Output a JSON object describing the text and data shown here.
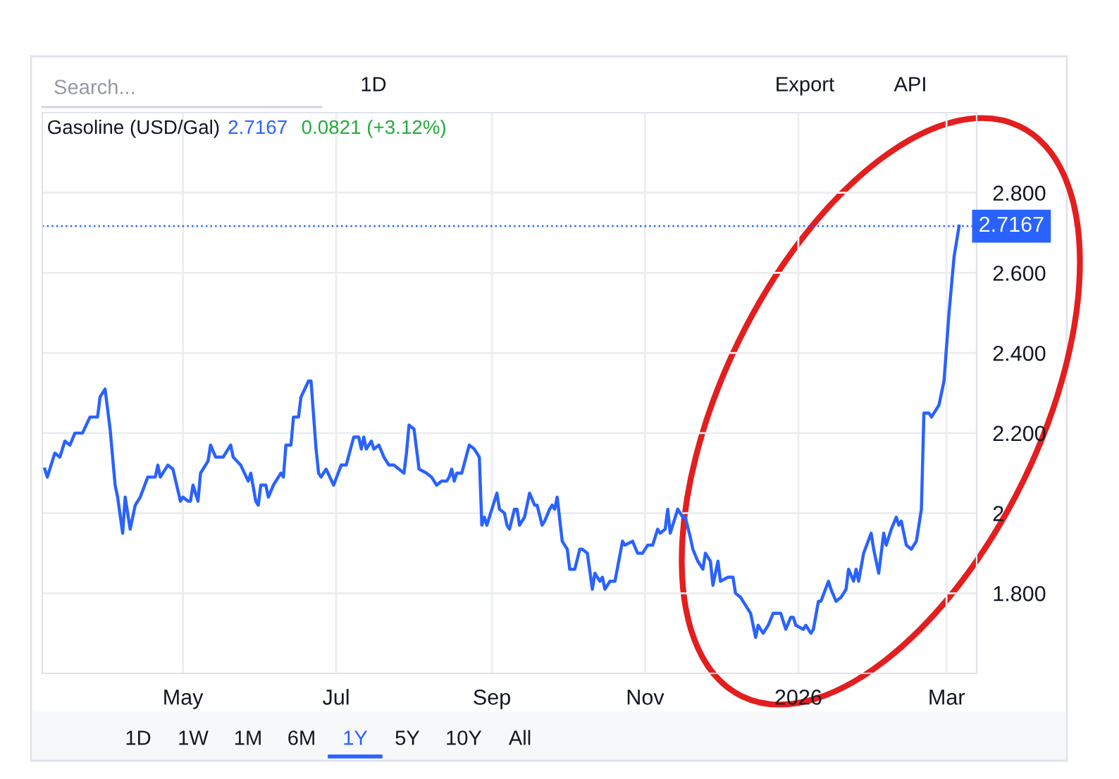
{
  "chart_data": {
    "type": "line",
    "title": "Gasoline (USD/Gal)",
    "annotations": [
      "2.7167",
      "0.0821 (+3.12%)",
      "Search...",
      "1D",
      "Export",
      "API",
      "1D",
      "1W",
      "1M",
      "6M",
      "1Y",
      "5Y",
      "10Y",
      "All"
    ],
    "x": [
      "2025-03-07",
      "2025-03-08",
      "2025-03-11",
      "2025-03-13",
      "2025-03-15",
      "2025-03-17",
      "2025-03-19",
      "2025-03-22",
      "2025-03-25",
      "2025-03-28",
      "2025-03-29",
      "2025-03-31",
      "2025-04-02",
      "2025-04-04",
      "2025-04-05",
      "2025-04-07",
      "2025-04-08",
      "2025-04-10",
      "2025-04-12",
      "2025-04-14",
      "2025-04-17",
      "2025-04-20",
      "2025-04-21",
      "2025-04-22",
      "2025-04-25",
      "2025-04-27",
      "2025-04-30",
      "2025-05-01",
      "2025-05-03",
      "2025-05-04",
      "2025-05-05",
      "2025-05-07",
      "2025-05-08",
      "2025-05-11",
      "2025-05-12",
      "2025-05-14",
      "2025-05-17",
      "2025-05-20",
      "2025-05-21",
      "2025-05-24",
      "2025-05-27",
      "2025-05-28",
      "2025-05-30",
      "2025-05-31",
      "2025-06-01",
      "2025-06-03",
      "2025-06-04",
      "2025-06-06",
      "2025-06-09",
      "2025-06-10",
      "2025-06-11",
      "2025-06-13",
      "2025-06-14",
      "2025-06-16",
      "2025-06-17",
      "2025-06-20",
      "2025-06-21",
      "2025-06-23",
      "2025-06-24",
      "2025-06-25",
      "2025-06-27",
      "2025-06-30",
      "2025-07-03",
      "2025-07-05",
      "2025-07-08",
      "2025-07-10",
      "2025-07-11",
      "2025-07-12",
      "2025-07-13",
      "2025-07-15",
      "2025-07-16",
      "2025-07-18",
      "2025-07-20",
      "2025-07-22",
      "2025-07-24",
      "2025-07-26",
      "2025-07-28",
      "2025-07-29",
      "2025-07-30",
      "2025-08-01",
      "2025-08-02",
      "2025-08-03",
      "2025-08-06",
      "2025-08-08",
      "2025-08-10",
      "2025-08-12",
      "2025-08-14",
      "2025-08-15",
      "2025-08-16",
      "2025-08-17",
      "2025-08-18",
      "2025-08-20",
      "2025-08-23",
      "2025-08-25",
      "2025-08-27",
      "2025-08-28",
      "2025-08-29",
      "2025-08-30",
      "2025-09-01",
      "2025-09-03",
      "2025-09-04",
      "2025-09-06",
      "2025-09-07",
      "2025-09-08",
      "2025-09-10",
      "2025-09-11",
      "2025-09-12",
      "2025-09-14",
      "2025-09-16",
      "2025-09-18",
      "2025-09-19",
      "2025-09-21",
      "2025-09-22",
      "2025-09-24",
      "2025-09-25",
      "2025-09-26",
      "2025-09-27",
      "2025-09-29",
      "2025-10-01",
      "2025-10-02",
      "2025-10-04",
      "2025-10-06",
      "2025-10-07",
      "2025-10-09",
      "2025-10-11",
      "2025-10-12",
      "2025-10-14",
      "2025-10-15",
      "2025-10-16",
      "2025-10-18",
      "2025-10-20",
      "2025-10-23",
      "2025-10-24",
      "2025-10-27",
      "2025-10-29",
      "2025-10-31",
      "2025-11-02",
      "2025-11-04",
      "2025-11-06",
      "2025-11-07",
      "2025-11-09",
      "2025-11-10",
      "2025-11-11",
      "2025-11-14",
      "2025-11-16",
      "2025-11-17",
      "2025-11-19",
      "2025-11-20",
      "2025-11-22",
      "2025-11-24",
      "2025-11-25",
      "2025-11-27",
      "2025-11-28",
      "2025-11-30",
      "2025-12-01",
      "2025-12-04",
      "2025-12-06",
      "2025-12-07",
      "2025-12-09",
      "2025-12-11",
      "2025-12-13",
      "2025-12-15",
      "2025-12-16",
      "2025-12-18",
      "2025-12-20",
      "2025-12-22",
      "2025-12-24",
      "2025-12-25",
      "2025-12-27",
      "2025-12-29",
      "2025-12-30",
      "2025-12-31",
      "2026-01-03",
      "2026-01-04",
      "2026-01-06",
      "2026-01-07",
      "2026-01-09",
      "2026-01-10",
      "2026-01-13",
      "2026-01-14",
      "2026-01-16",
      "2026-01-18",
      "2026-01-20",
      "2026-01-21",
      "2026-01-23",
      "2026-01-24",
      "2026-01-25",
      "2026-01-27",
      "2026-01-30",
      "2026-01-31",
      "2026-02-02",
      "2026-02-04",
      "2026-02-05",
      "2026-02-07",
      "2026-02-09",
      "2026-02-10",
      "2026-02-11",
      "2026-02-13",
      "2026-02-15",
      "2026-02-17",
      "2026-02-19",
      "2026-02-20",
      "2026-02-22",
      "2026-02-23",
      "2026-02-25",
      "2026-02-26",
      "2026-02-28",
      "2026-03-02",
      "2026-03-03",
      "2026-03-04",
      "2026-03-06"
    ],
    "series": [
      {
        "color": "#2962ff",
        "values": [
          2.11,
          2.09,
          2.15,
          2.14,
          2.18,
          2.17,
          2.2,
          2.2,
          2.24,
          2.24,
          2.29,
          2.31,
          2.21,
          2.07,
          2.04,
          1.95,
          2.04,
          1.96,
          2.02,
          2.04,
          2.09,
          2.09,
          2.12,
          2.09,
          2.12,
          2.11,
          2.03,
          2.04,
          2.03,
          2.03,
          2.07,
          2.03,
          2.1,
          2.13,
          2.17,
          2.14,
          2.14,
          2.17,
          2.14,
          2.12,
          2.08,
          2.1,
          2.03,
          2.02,
          2.07,
          2.07,
          2.04,
          2.07,
          2.1,
          2.09,
          2.17,
          2.17,
          2.24,
          2.24,
          2.29,
          2.33,
          2.33,
          2.16,
          2.1,
          2.09,
          2.11,
          2.07,
          2.12,
          2.12,
          2.19,
          2.19,
          2.16,
          2.19,
          2.16,
          2.18,
          2.16,
          2.17,
          2.14,
          2.12,
          2.12,
          2.11,
          2.1,
          2.15,
          2.22,
          2.21,
          2.16,
          2.11,
          2.1,
          2.09,
          2.07,
          2.08,
          2.08,
          2.09,
          2.11,
          2.08,
          2.1,
          2.1,
          2.17,
          2.16,
          2.14,
          1.97,
          1.99,
          1.97,
          2.01,
          2.05,
          2.01,
          2.0,
          1.97,
          1.96,
          2.01,
          2.01,
          1.97,
          1.99,
          2.05,
          2.02,
          2.02,
          1.97,
          1.98,
          2.01,
          2.02,
          2.01,
          2.04,
          1.93,
          1.91,
          1.86,
          1.86,
          1.91,
          1.91,
          1.9,
          1.81,
          1.85,
          1.83,
          1.84,
          1.81,
          1.83,
          1.83,
          1.93,
          1.92,
          1.93,
          1.9,
          1.9,
          1.92,
          1.92,
          1.96,
          1.95,
          1.96,
          2.01,
          1.95,
          2.01,
          1.99,
          1.99,
          1.94,
          1.91,
          1.88,
          1.86,
          1.9,
          1.88,
          1.82,
          1.88,
          1.83,
          1.84,
          1.84,
          1.8,
          1.79,
          1.77,
          1.75,
          1.69,
          1.72,
          1.7,
          1.72,
          1.75,
          1.75,
          1.75,
          1.71,
          1.74,
          1.74,
          1.72,
          1.71,
          1.72,
          1.7,
          1.71,
          1.78,
          1.78,
          1.83,
          1.81,
          1.78,
          1.79,
          1.81,
          1.86,
          1.83,
          1.86,
          1.83,
          1.9,
          1.95,
          1.91,
          1.85,
          1.95,
          1.92,
          1.96,
          1.99,
          1.97,
          1.98,
          1.92,
          1.91,
          1.93,
          2.01,
          2.25,
          2.25,
          2.24,
          2.26,
          2.27,
          2.33,
          2.5,
          2.57,
          2.64,
          2.7167
        ]
      }
    ],
    "xlim": [
      "2025-03-06",
      "2026-03-13"
    ],
    "xticks": [
      {
        "value": "2025-05-01",
        "label": "May"
      },
      {
        "value": "2025-07-01",
        "label": "Jul"
      },
      {
        "value": "2025-09-01",
        "label": "Sep"
      },
      {
        "value": "2025-11-01",
        "label": "Nov"
      },
      {
        "value": "2026-01-01",
        "label": "2026"
      },
      {
        "value": "2026-03-01",
        "label": "Mar"
      }
    ],
    "ylim": [
      1.6,
      3.0
    ],
    "yticks": [
      {
        "value": 1.8,
        "label": "1.800"
      },
      2,
      {
        "value": 2.2,
        "label": "2.200"
      },
      {
        "value": 2.4,
        "label": "2.400"
      },
      {
        "value": 2.6,
        "label": "2.600"
      },
      {
        "value": 2.8,
        "label": "2.800"
      }
    ],
    "ref_lines": [
      {
        "axis": "y",
        "value": 2.7167,
        "label": "2.7167",
        "color": "#2962ff",
        "line_style": "dotted"
      }
    ],
    "grid": true,
    "legend": false,
    "marker": "none",
    "line_style": "solid"
  }
}
